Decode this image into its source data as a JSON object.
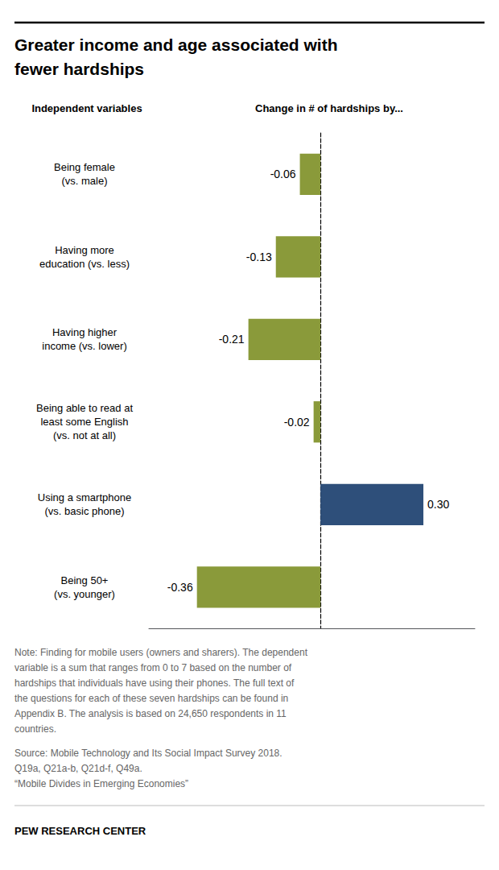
{
  "chart_data": {
    "type": "bar",
    "orientation": "horizontal",
    "title": "Greater income and age associated with\nfewer hardships",
    "ylabel": "Independent variables",
    "xlabel": "Change in # of hardships by...",
    "categories": [
      "Being female\n(vs. male)",
      "Having more\neducation (vs. less)",
      "Having higher\nincome (vs. lower)",
      "Being able to read at\nleast some English\n(vs. not at all)",
      "Using a smartphone\n(vs. basic phone)",
      "Being 50+\n(vs. younger)"
    ],
    "values": [
      -0.06,
      -0.13,
      -0.21,
      -0.02,
      0.3,
      -0.36
    ],
    "value_labels": [
      "-0.06",
      "-0.13",
      "-0.21",
      "-0.02",
      "0.30",
      "-0.36"
    ],
    "colors": [
      "#8a9a3a",
      "#8a9a3a",
      "#8a9a3a",
      "#8a9a3a",
      "#2e4f7a",
      "#8a9a3a"
    ],
    "xlim": [
      -0.5,
      0.45
    ],
    "data_labels": true,
    "tick_labels": "y",
    "grid": false,
    "note": [
      "Note: Finding for mobile users (owners and sharers). The dependent",
      "variable is a sum that ranges from 0 to 7 based on the number of",
      "hardships that individuals have using their phones. The full text of",
      "the questions for each of these seven hardships can be found in",
      "Appendix B. The analysis is based on 24,650 respondents in 11",
      "countries."
    ],
    "source": [
      "Source: Mobile Technology and Its Social Impact Survey 2018.",
      "Q19a, Q21a-b, Q21d-f, Q49a.",
      "“Mobile Divides in Emerging Economies”"
    ],
    "footer": "PEW RESEARCH CENTER"
  }
}
